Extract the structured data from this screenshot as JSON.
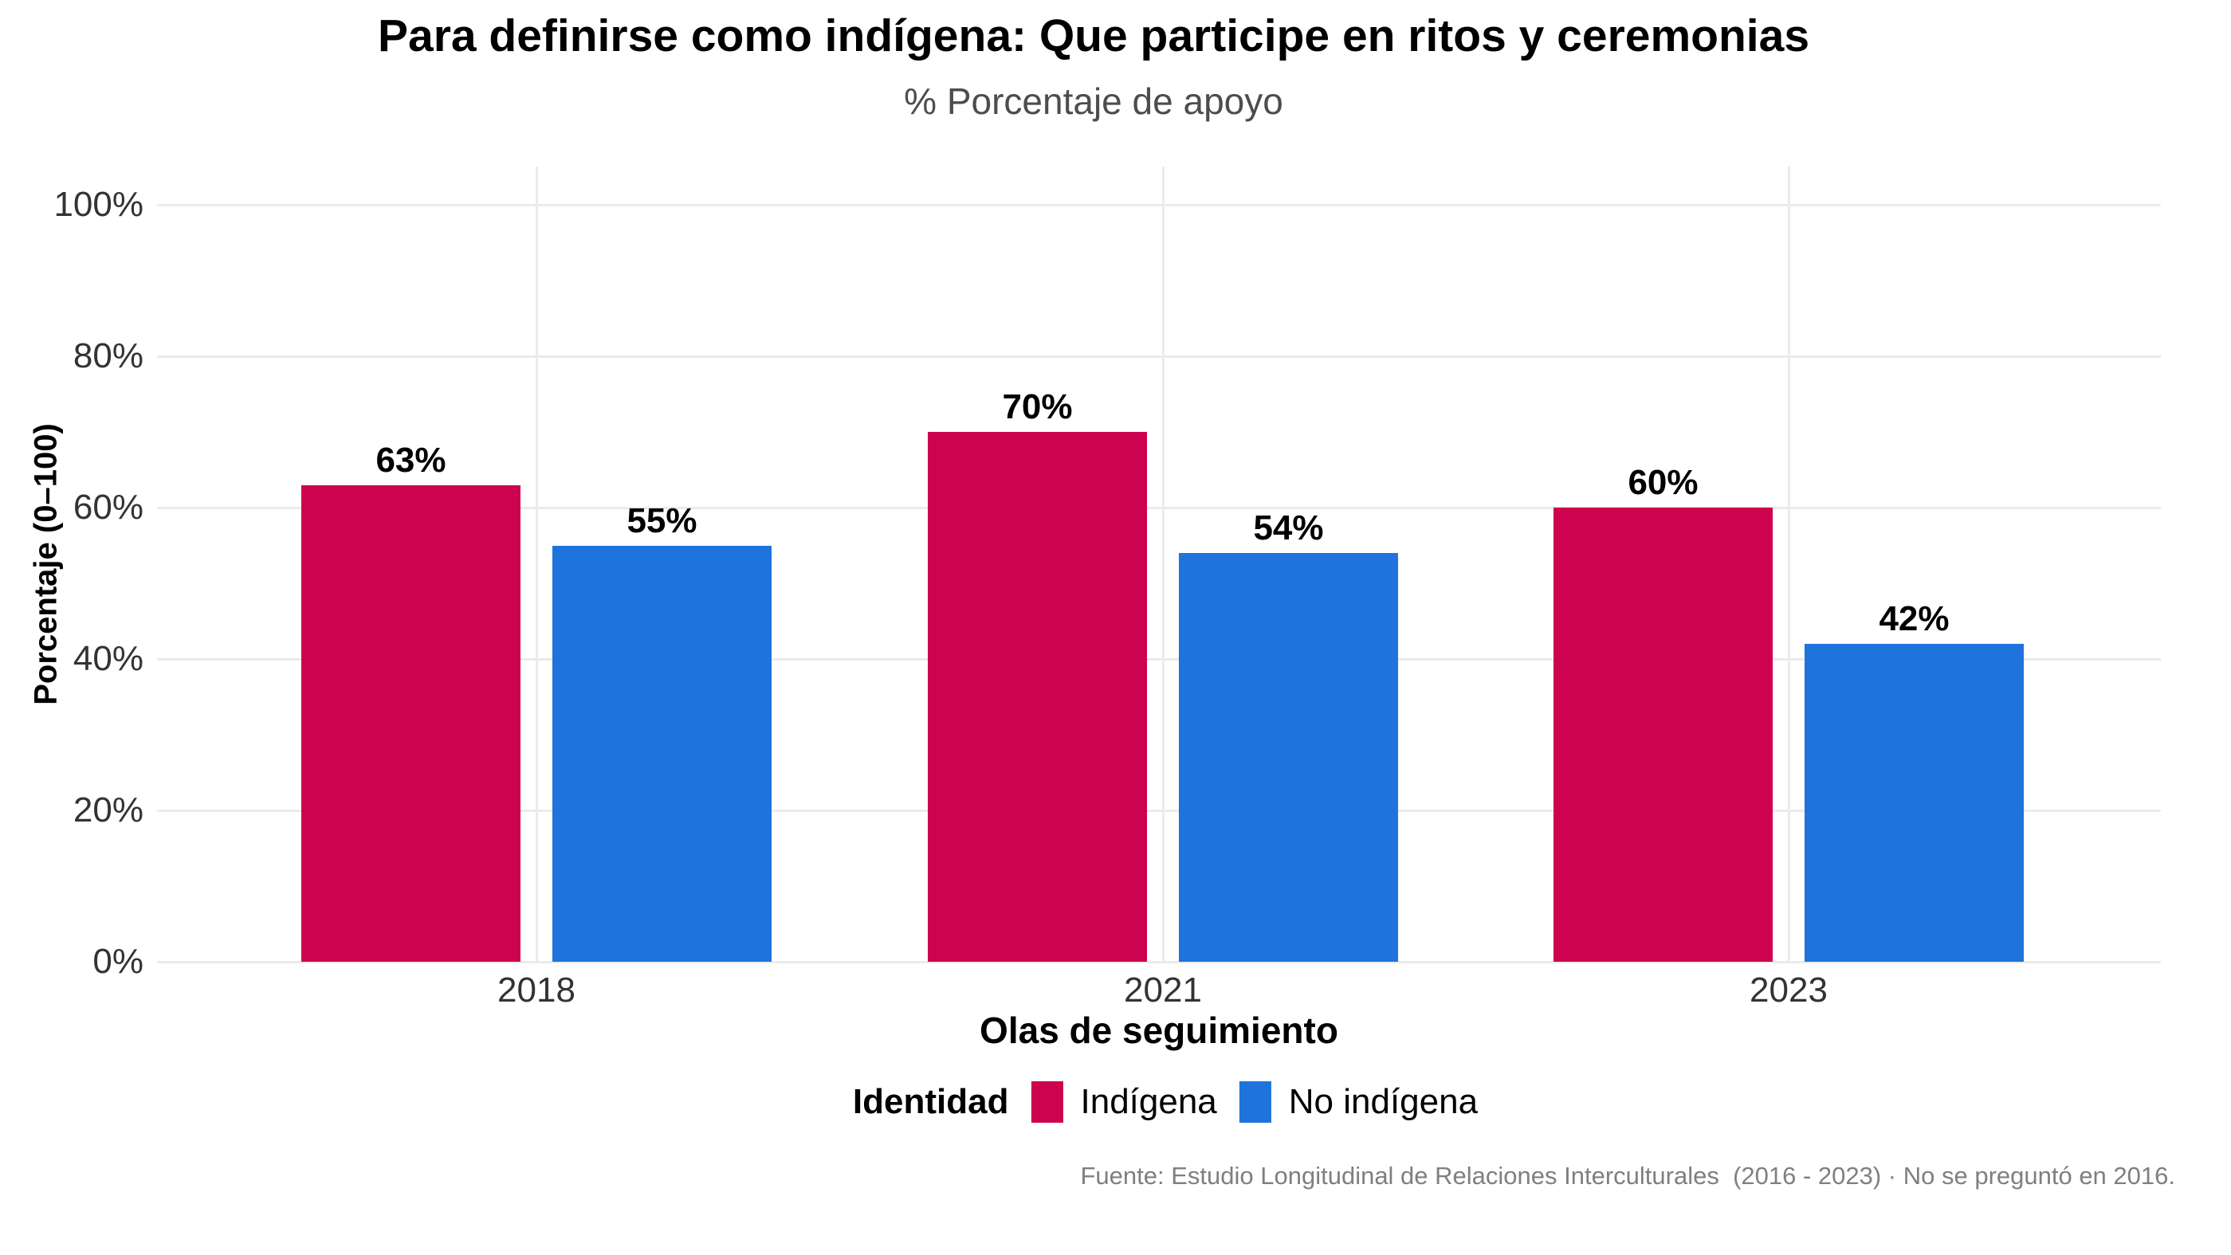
{
  "chart_data": {
    "type": "bar",
    "title": "Para definirse como indígena: Que participe en ritos y ceremonias",
    "subtitle": "% Porcentaje de apoyo",
    "xlabel": "Olas de seguimiento",
    "ylabel": "Porcentaje (0–100)",
    "categories": [
      "2018",
      "2021",
      "2023"
    ],
    "series": [
      {
        "name": "Indígena",
        "color": "#cd0350",
        "values": [
          63,
          70,
          60
        ],
        "labels": [
          "63%",
          "70%",
          "60%"
        ]
      },
      {
        "name": "No indígena",
        "color": "#1f73dd",
        "values": [
          55,
          54,
          42
        ],
        "labels": [
          "55%",
          "54%",
          "42%"
        ]
      }
    ],
    "ylim": [
      0,
      100
    ],
    "yticks": [
      0,
      20,
      40,
      60,
      80,
      100
    ],
    "ytick_labels": [
      "0%",
      "20%",
      "40%",
      "60%",
      "80%",
      "100%"
    ],
    "grid": true,
    "legend_title": "Identidad",
    "legend_position": "bottom",
    "caption": "Fuente: Estudio Longitudinal de Relaciones Interculturales  (2016 - 2023) · No se preguntó en 2016."
  },
  "colors": {
    "background": "#ffffff",
    "gridline": "#ebebeb",
    "tick_text": "#333333",
    "subtitle_text": "#4d4d4d",
    "caption_text": "#7f7f7f",
    "title_text": "#000000"
  }
}
